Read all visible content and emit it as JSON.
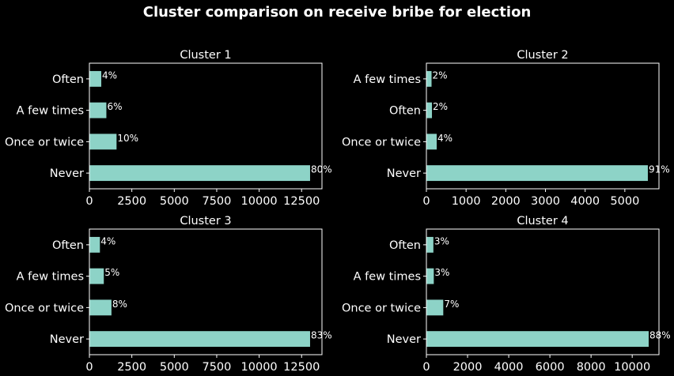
{
  "suptitle": "Cluster comparison on receive bribe for election",
  "colors": {
    "background": "#000000",
    "bar": "#8dd3c7",
    "text": "#ffffff",
    "axes": "#ffffff"
  },
  "chart_data": [
    {
      "type": "bar",
      "orientation": "horizontal",
      "title": "Cluster 1",
      "categories": [
        "Never",
        "Once or twice",
        "A few times",
        "Often"
      ],
      "values": [
        13000,
        1600,
        1000,
        700
      ],
      "labels": [
        "80%",
        "10%",
        "6%",
        "4%"
      ],
      "xlim": [
        0,
        13700
      ],
      "xticks": [
        0,
        2500,
        5000,
        7500,
        10000,
        12500
      ],
      "xlabel": "",
      "ylabel": ""
    },
    {
      "type": "bar",
      "orientation": "horizontal",
      "title": "Cluster 2",
      "categories": [
        "Never",
        "Once or twice",
        "Often",
        "A few times"
      ],
      "values": [
        5580,
        260,
        140,
        130
      ],
      "labels": [
        "91%",
        "4%",
        "2%",
        "2%"
      ],
      "xlim": [
        0,
        5860
      ],
      "xticks": [
        0,
        1000,
        2000,
        3000,
        4000,
        5000
      ],
      "xlabel": "",
      "ylabel": ""
    },
    {
      "type": "bar",
      "orientation": "horizontal",
      "title": "Cluster 3",
      "categories": [
        "Never",
        "Once or twice",
        "A few times",
        "Often"
      ],
      "values": [
        13000,
        1300,
        850,
        620
      ],
      "labels": [
        "83%",
        "8%",
        "5%",
        "4%"
      ],
      "xlim": [
        0,
        13700
      ],
      "xticks": [
        0,
        2500,
        5000,
        7500,
        10000,
        12500
      ],
      "xlabel": "",
      "ylabel": ""
    },
    {
      "type": "bar",
      "orientation": "horizontal",
      "title": "Cluster 4",
      "categories": [
        "Never",
        "Once or twice",
        "A few times",
        "Often"
      ],
      "values": [
        10800,
        820,
        360,
        340
      ],
      "labels": [
        "88%",
        "7%",
        "3%",
        "3%"
      ],
      "xlim": [
        0,
        11300
      ],
      "xticks": [
        0,
        2000,
        4000,
        6000,
        8000,
        10000
      ],
      "xlabel": "",
      "ylabel": ""
    }
  ]
}
